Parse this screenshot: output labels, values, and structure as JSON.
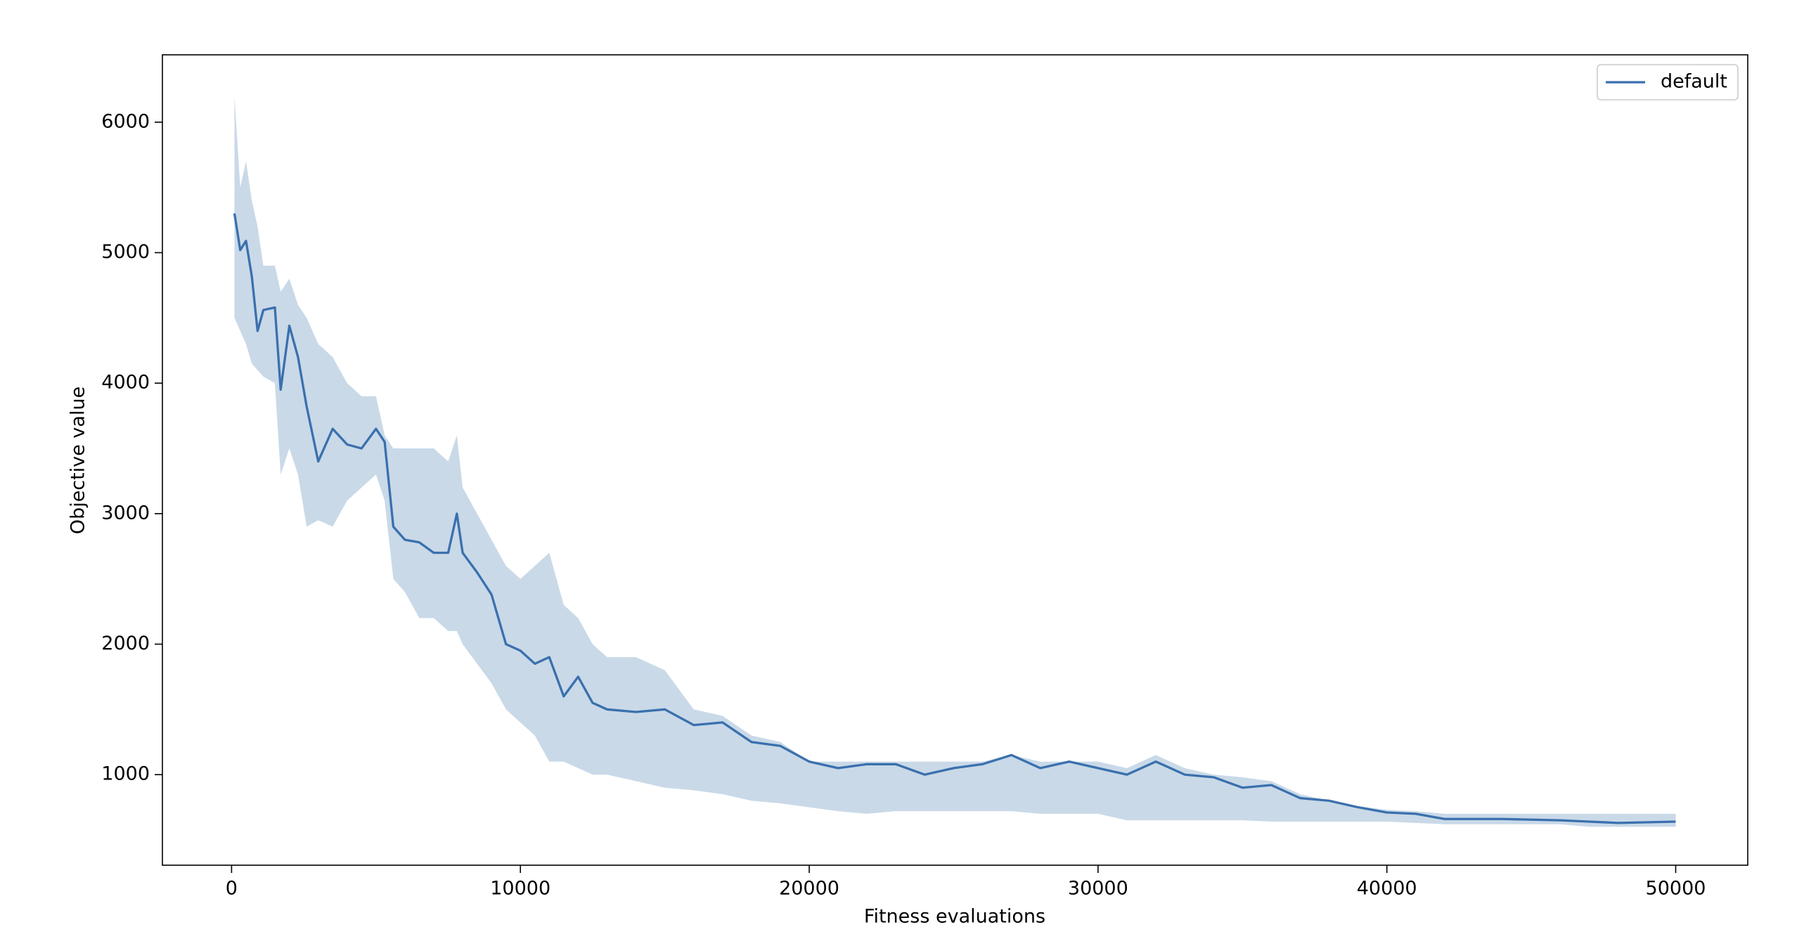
{
  "chart_data": {
    "type": "line",
    "xlabel": "Fitness evaluations",
    "ylabel": "Objective value",
    "x": [
      100,
      300,
      500,
      700,
      900,
      1100,
      1500,
      1700,
      2000,
      2300,
      2600,
      3000,
      3500,
      4000,
      4500,
      5000,
      5300,
      5600,
      6000,
      6500,
      7000,
      7500,
      7800,
      8000,
      8500,
      9000,
      9500,
      10000,
      10500,
      11000,
      11500,
      12000,
      12500,
      13000,
      14000,
      15000,
      16000,
      17000,
      18000,
      19000,
      20000,
      21000,
      22000,
      23000,
      24000,
      25000,
      26000,
      27000,
      28000,
      29000,
      30000,
      31000,
      32000,
      33000,
      34000,
      35000,
      36000,
      37000,
      38000,
      39000,
      40000,
      41000,
      42000,
      44000,
      46000,
      47000,
      48000,
      50000
    ],
    "series": [
      {
        "name": "default",
        "color": "#3a70ad",
        "values": [
          5300,
          5020,
          5090,
          4820,
          4400,
          4560,
          4580,
          3950,
          4440,
          4200,
          3820,
          3400,
          3650,
          3530,
          3500,
          3650,
          3550,
          2900,
          2800,
          2780,
          2700,
          2700,
          3000,
          2700,
          2550,
          2380,
          2000,
          1950,
          1850,
          1900,
          1600,
          1750,
          1550,
          1500,
          1480,
          1500,
          1380,
          1400,
          1250,
          1220,
          1100,
          1050,
          1080,
          1080,
          1000,
          1050,
          1080,
          1150,
          1050,
          1100,
          1050,
          1000,
          1100,
          1000,
          980,
          900,
          920,
          820,
          800,
          750,
          710,
          700,
          660,
          660,
          650,
          640,
          630,
          640
        ]
      }
    ],
    "band": {
      "color": "#c9d9e8",
      "lower": [
        4500,
        4400,
        4300,
        4150,
        4100,
        4050,
        4000,
        3300,
        3500,
        3300,
        2900,
        2950,
        2900,
        3100,
        3200,
        3300,
        3100,
        2500,
        2400,
        2200,
        2200,
        2100,
        2100,
        2000,
        1850,
        1700,
        1500,
        1400,
        1300,
        1100,
        1100,
        1050,
        1000,
        1000,
        950,
        900,
        880,
        850,
        800,
        780,
        750,
        720,
        700,
        720,
        720,
        720,
        720,
        720,
        700,
        700,
        700,
        650,
        650,
        650,
        650,
        650,
        640,
        640,
        640,
        640,
        640,
        630,
        620,
        620,
        620,
        600,
        600,
        600
      ],
      "upper": [
        6200,
        5500,
        5700,
        5400,
        5200,
        4900,
        4900,
        4700,
        4800,
        4600,
        4500,
        4300,
        4200,
        4000,
        3900,
        3900,
        3600,
        3500,
        3500,
        3500,
        3500,
        3400,
        3600,
        3200,
        3000,
        2800,
        2600,
        2500,
        2600,
        2700,
        2300,
        2200,
        2000,
        1900,
        1900,
        1800,
        1500,
        1450,
        1300,
        1250,
        1100,
        1100,
        1100,
        1100,
        1100,
        1100,
        1100,
        1150,
        1100,
        1100,
        1100,
        1050,
        1150,
        1050,
        1000,
        980,
        950,
        850,
        800,
        760,
        730,
        720,
        700,
        700,
        700,
        700,
        700,
        700
      ]
    },
    "xlim": [
      -2395,
      52495
    ],
    "ylim": [
      306,
      6516
    ],
    "xticks": [
      0,
      10000,
      20000,
      30000,
      40000,
      50000
    ],
    "yticks": [
      1000,
      2000,
      3000,
      4000,
      5000,
      6000
    ],
    "legend": "upper right"
  }
}
